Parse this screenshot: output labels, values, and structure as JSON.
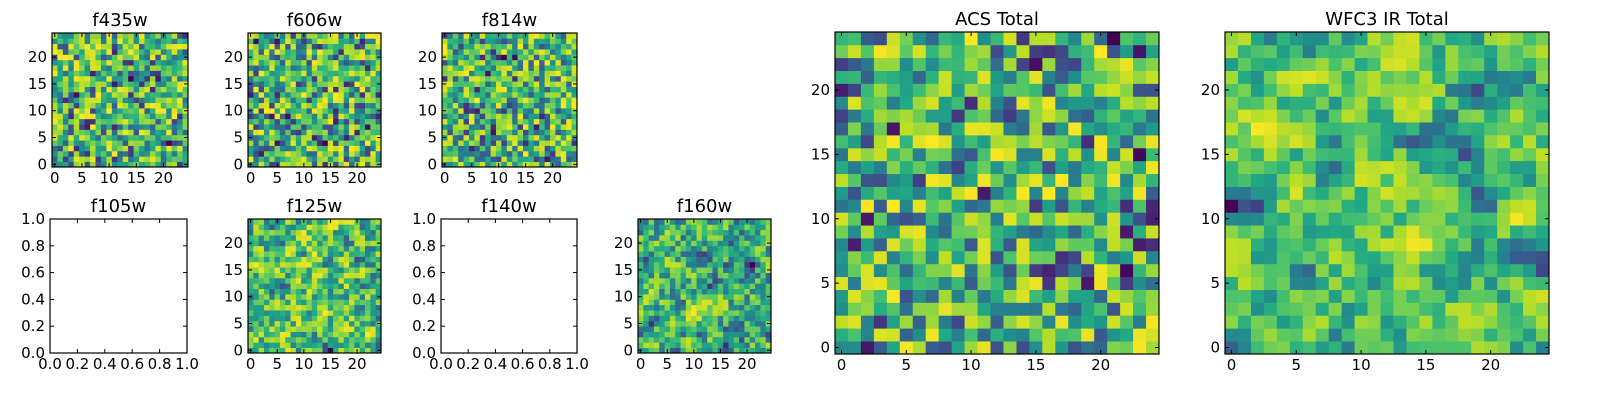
{
  "figure": {
    "type": "heatmap-grid"
  },
  "chart_data": [
    {
      "type": "heatmap",
      "title": "f435w",
      "image_size": 25,
      "xticks": [
        0,
        5,
        10,
        15,
        20
      ],
      "yticks": [
        0,
        5,
        10,
        15,
        20
      ],
      "seed": 11,
      "smooth": 0,
      "colormap": "viridis",
      "empty": false
    },
    {
      "type": "heatmap",
      "title": "f606w",
      "image_size": 25,
      "xticks": [
        0,
        5,
        10,
        15,
        20
      ],
      "yticks": [
        0,
        5,
        10,
        15,
        20
      ],
      "seed": 22,
      "smooth": 0,
      "colormap": "viridis",
      "empty": false
    },
    {
      "type": "heatmap",
      "title": "f814w",
      "image_size": 25,
      "xticks": [
        0,
        5,
        10,
        15,
        20
      ],
      "yticks": [
        0,
        5,
        10,
        15,
        20
      ],
      "seed": 33,
      "smooth": 0,
      "colormap": "viridis",
      "empty": false
    },
    {
      "type": "heatmap",
      "title": "f105w",
      "xlim": [
        0.0,
        1.0
      ],
      "ylim": [
        0.0,
        1.0
      ],
      "xticks": [
        "0.0",
        "0.2",
        "0.4",
        "0.6",
        "0.8",
        "1.0"
      ],
      "yticks": [
        "0.0",
        "0.2",
        "0.4",
        "0.6",
        "0.8",
        "1.0"
      ],
      "empty": true
    },
    {
      "type": "heatmap",
      "title": "f125w",
      "image_size": 25,
      "xticks": [
        0,
        5,
        10,
        15,
        20
      ],
      "yticks": [
        0,
        5,
        10,
        15,
        20
      ],
      "seed": 44,
      "smooth": 1,
      "colormap": "viridis",
      "empty": false
    },
    {
      "type": "heatmap",
      "title": "f140w",
      "xlim": [
        0.0,
        1.0
      ],
      "ylim": [
        0.0,
        1.0
      ],
      "xticks": [
        "0.0",
        "0.2",
        "0.4",
        "0.6",
        "0.8",
        "1.0"
      ],
      "yticks": [
        "0.0",
        "0.2",
        "0.4",
        "0.6",
        "0.8",
        "1.0"
      ],
      "empty": true
    },
    {
      "type": "heatmap",
      "title": "f160w",
      "image_size": 25,
      "xticks": [
        0,
        5,
        10,
        15,
        20
      ],
      "yticks": [
        0,
        5,
        10,
        15,
        20
      ],
      "seed": 55,
      "smooth": 1,
      "colormap": "viridis",
      "empty": false
    },
    {
      "type": "heatmap",
      "title": "ACS Total",
      "image_size": 25,
      "xticks": [
        0,
        5,
        10,
        15,
        20
      ],
      "yticks": [
        0,
        5,
        10,
        15,
        20
      ],
      "seed": 66,
      "smooth": 0,
      "colormap": "viridis",
      "empty": false
    },
    {
      "type": "heatmap",
      "title": "WFC3 IR Total",
      "image_size": 25,
      "xticks": [
        0,
        5,
        10,
        15,
        20
      ],
      "yticks": [
        0,
        5,
        10,
        15,
        20
      ],
      "seed": 77,
      "smooth": 2,
      "colormap": "viridis",
      "empty": false
    }
  ]
}
